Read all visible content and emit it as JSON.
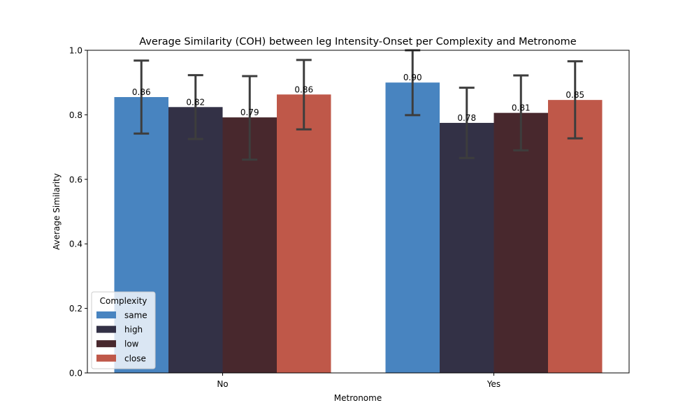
{
  "chart_data": {
    "type": "bar",
    "title": "Average Similarity (COH) between leg Intensity-Onset per Complexity and Metronome",
    "xlabel": "Metronome",
    "ylabel": "Average Similarity",
    "categories": [
      "No",
      "Yes"
    ],
    "ylim": [
      0,
      1
    ],
    "yticks": [
      "0.0",
      "0.2",
      "0.4",
      "0.6",
      "0.8",
      "1.0"
    ],
    "grid": false,
    "legend": {
      "title": "Complexity",
      "placement": "lower-left"
    },
    "series": [
      {
        "name": "same",
        "color": "#4884c0",
        "values": [
          0.855,
          0.9
        ],
        "labels": [
          "0.86",
          "0.90"
        ],
        "err_low": [
          0.742,
          0.799
        ],
        "err_high": [
          0.968,
          1.0
        ]
      },
      {
        "name": "high",
        "color": "#333146",
        "values": [
          0.824,
          0.775
        ],
        "labels": [
          "0.82",
          "0.78"
        ],
        "err_low": [
          0.725,
          0.666
        ],
        "err_high": [
          0.923,
          0.884
        ]
      },
      {
        "name": "low",
        "color": "#48282d",
        "values": [
          0.792,
          0.806
        ],
        "labels": [
          "0.79",
          "0.81"
        ],
        "err_low": [
          0.661,
          0.69
        ],
        "err_high": [
          0.92,
          0.922
        ]
      },
      {
        "name": "close",
        "color": "#bf5849",
        "values": [
          0.863,
          0.846
        ],
        "labels": [
          "0.86",
          "0.85"
        ],
        "err_low": [
          0.755,
          0.727
        ],
        "err_high": [
          0.97,
          0.966
        ]
      }
    ],
    "errorbar_color": "#3d3d3d"
  }
}
